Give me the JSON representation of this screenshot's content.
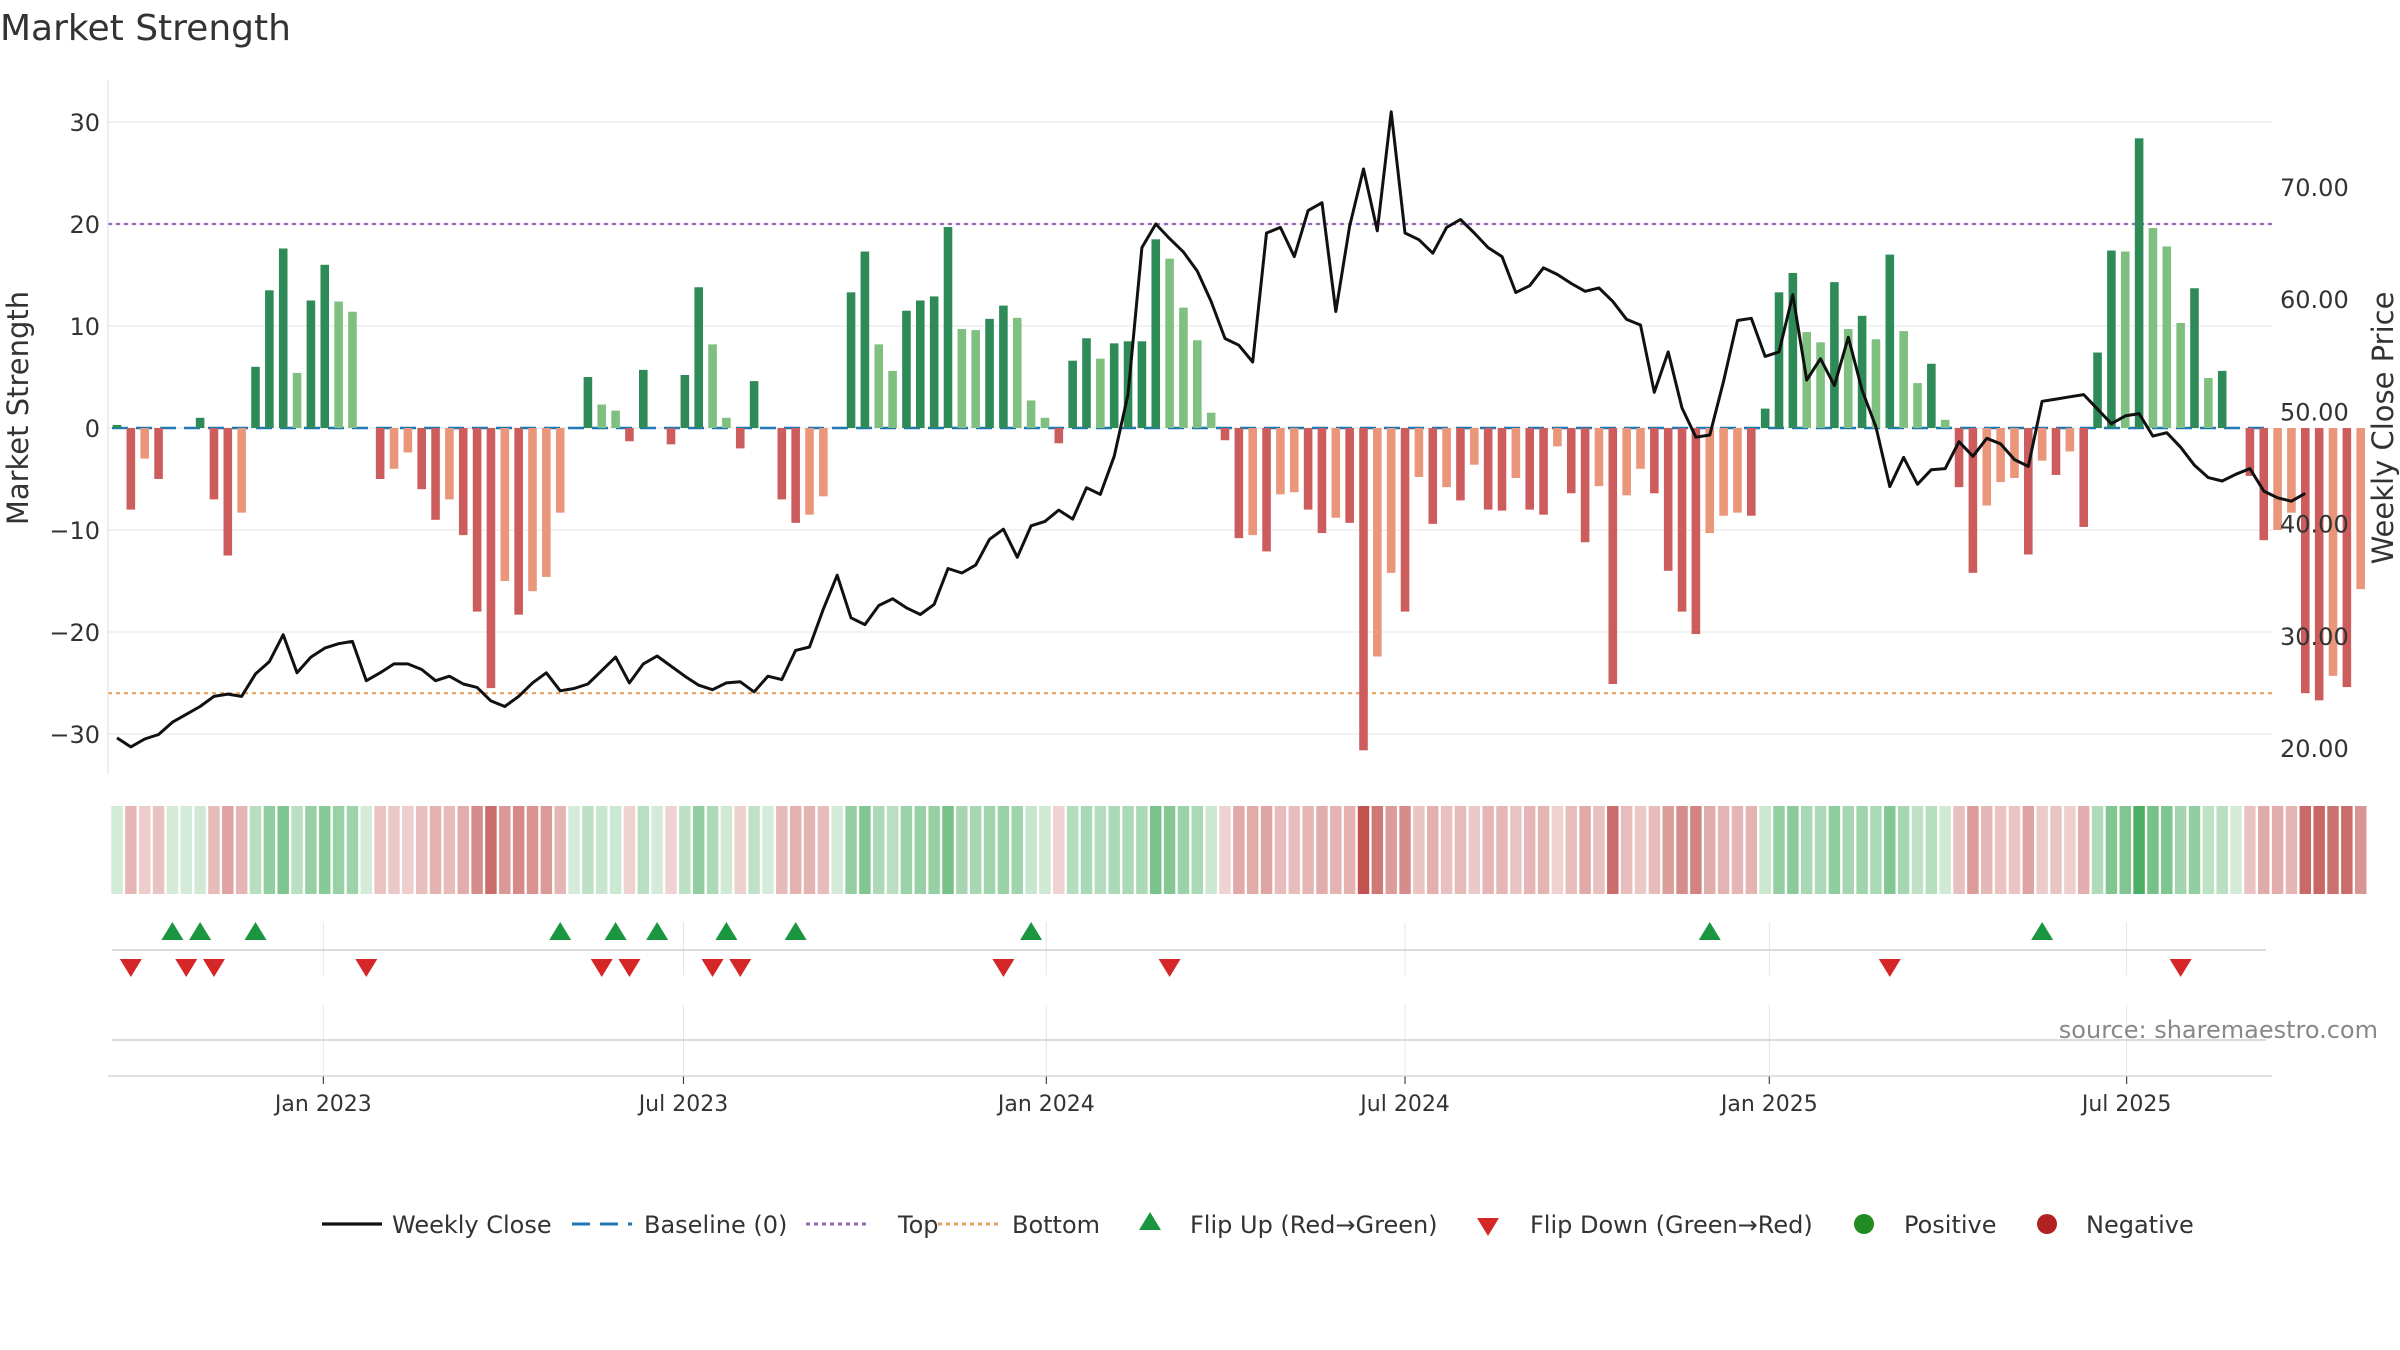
{
  "chart_data": {
    "type": "bar",
    "title": "Market Strength",
    "ylabel": "Market Strength",
    "ylabel_right": "Weekly Close Price",
    "source": "source: sharemaestro.com",
    "ylim": [
      -34,
      35
    ],
    "y_ticks": [
      30,
      20,
      10,
      0,
      -10,
      -20,
      -30
    ],
    "y_tick_labels": [
      "30",
      "20",
      "10",
      "0",
      "−10",
      "−20",
      "−30"
    ],
    "y2lim": [
      16.5,
      81
    ],
    "y2_ticks": [
      70,
      60,
      50,
      40,
      30,
      20
    ],
    "y2_tick_labels": [
      "70.00",
      "60.00",
      "50.00",
      "40.00",
      "30.00",
      "20.00"
    ],
    "x_ticks": [
      {
        "index": 14.9,
        "label": "Jan 2023"
      },
      {
        "index": 40.9,
        "label": "Jul 2023"
      },
      {
        "index": 67.1,
        "label": "Jan 2024"
      },
      {
        "index": 93.0,
        "label": "Jul 2024"
      },
      {
        "index": 119.3,
        "label": "Jan 2025"
      },
      {
        "index": 145.1,
        "label": "Jul 2025"
      }
    ],
    "top_line": 20,
    "bottom_line": -26,
    "colors": {
      "strong_pos": "#2e8b57",
      "weak_pos": "#7fbf7f",
      "strong_neg": "#cd5c5c",
      "weak_neg": "#e9967a",
      "close": "#111111",
      "baseline": "#1f77b4",
      "top": "#9467bd",
      "bottom": "#e9a15f",
      "flip_up": "#1a9641",
      "flip_down": "#d62728",
      "positive": "#228b22",
      "negative": "#b22222"
    },
    "strength": [
      0.3,
      -8,
      -3,
      -5,
      0,
      0,
      1,
      -7,
      -12.5,
      -8.3,
      6,
      13.5,
      17.6,
      5.4,
      12.5,
      16,
      12.4,
      11.4,
      0,
      -5,
      -4,
      -2.4,
      -6,
      -9,
      -7,
      -10.5,
      -18,
      -25.5,
      -15,
      -18.3,
      -16,
      -14.6,
      -8.3,
      0,
      5,
      2.3,
      1.7,
      -1.3,
      5.7,
      0,
      -1.6,
      5.2,
      13.8,
      8.2,
      1,
      -2,
      4.6,
      0,
      -7,
      -9.3,
      -8.5,
      -6.7,
      0,
      13.3,
      17.3,
      8.2,
      5.6,
      11.5,
      12.5,
      12.9,
      19.7,
      9.7,
      9.6,
      10.7,
      12,
      10.8,
      2.7,
      1,
      -1.5,
      6.6,
      8.8,
      6.8,
      8.3,
      8.5,
      8.5,
      18.5,
      16.6,
      11.8,
      8.6,
      1.5,
      -1.2,
      -10.8,
      -10.5,
      -12.1,
      -6.5,
      -6.3,
      -8,
      -10.3,
      -8.8,
      -9.3,
      -31.6,
      -22.4,
      -14.2,
      -18,
      -4.8,
      -9.4,
      -5.8,
      -7.1,
      -3.6,
      -8,
      -8.1,
      -4.9,
      -8,
      -8.5,
      -1.8,
      -6.4,
      -11.2,
      -5.7,
      -25.1,
      -6.6,
      -4,
      -6.4,
      -14,
      -18,
      -20.2,
      -10.3,
      -8.6,
      -8.3,
      -8.6,
      1.9,
      13.3,
      15.2,
      9.4,
      8.4,
      14.3,
      9.7,
      11,
      8.7,
      17,
      9.5,
      4.4,
      6.3,
      0.8,
      -5.8,
      -14.2,
      -7.6,
      -5.3,
      -4.9,
      -12.4,
      -3.2,
      -4.6,
      -2.3,
      -9.7,
      7.4,
      17.4,
      17.3,
      28.4,
      19.6,
      17.8,
      10.3,
      13.7,
      4.9,
      5.6,
      0,
      -4.7,
      -11,
      -10,
      -8.3,
      -26,
      -26.7,
      -24.3,
      -25.4,
      -15.8
    ],
    "weekly_close": [
      20.9,
      20.1,
      20.8,
      21.2,
      22.3,
      23,
      23.7,
      24.6,
      24.8,
      24.6,
      26.6,
      27.7,
      30.1,
      26.7,
      28.1,
      28.9,
      29.3,
      29.5,
      26,
      26.7,
      27.5,
      27.5,
      27,
      26,
      26.4,
      25.7,
      25.4,
      24.2,
      23.7,
      24.6,
      25.8,
      26.7,
      25.1,
      25.3,
      25.7,
      26.9,
      28.1,
      25.8,
      27.5,
      28.2,
      27.3,
      26.4,
      25.6,
      25.2,
      25.8,
      25.9,
      25,
      26.4,
      26.1,
      28.7,
      29,
      32.4,
      35.4,
      31.6,
      31,
      32.7,
      33.3,
      32.5,
      31.9,
      32.8,
      36,
      35.6,
      36.3,
      38.6,
      39.5,
      37,
      39.8,
      40.2,
      41.2,
      40.4,
      43.2,
      42.6,
      46,
      51.5,
      64.6,
      66.7,
      65.4,
      64.2,
      62.5,
      59.8,
      56.5,
      55.9,
      54.4,
      65.9,
      66.4,
      63.8,
      67.9,
      68.6,
      58.9,
      66.5,
      71.6,
      66.1,
      76.7,
      65.9,
      65.3,
      64.1,
      66.4,
      67.1,
      65.9,
      64.6,
      63.8,
      60.6,
      61.2,
      62.8,
      62.2,
      61.4,
      60.7,
      61,
      59.8,
      58.2,
      57.7,
      51.7,
      55.3,
      50.3,
      47.7,
      47.9,
      52.7,
      58.1,
      58.3,
      54.9,
      55.3,
      60.4,
      52.8,
      54.7,
      52.3,
      56.6,
      51.9,
      48.6,
      43.3,
      45.9,
      43.5,
      44.8,
      44.9,
      47.3,
      46,
      47.6,
      47.1,
      45.7,
      45.1,
      50.9,
      51.1,
      51.3,
      51.5,
      50.2,
      48.9,
      49.6,
      49.8,
      47.8,
      48.1,
      46.8,
      45.2,
      44.1,
      43.8,
      44.4,
      44.9,
      42.9,
      42.3,
      42,
      42.7
    ],
    "flip_up_index": [
      4,
      6,
      10,
      32,
      36,
      39,
      44,
      49,
      66,
      115,
      139
    ],
    "flip_down_index": [
      1,
      5,
      7,
      18,
      35,
      37,
      43,
      45,
      64,
      76,
      128,
      149
    ],
    "legend": [
      {
        "key": "close",
        "label": "Weekly Close"
      },
      {
        "key": "baseline",
        "label": "Baseline (0)"
      },
      {
        "key": "top",
        "label": "Top"
      },
      {
        "key": "bottom",
        "label": "Bottom"
      },
      {
        "key": "flip_up",
        "label": "Flip Up (Red→Green)"
      },
      {
        "key": "flip_down",
        "label": "Flip Down (Green→Red)"
      },
      {
        "key": "positive",
        "label": "Positive"
      },
      {
        "key": "negative",
        "label": "Negative"
      }
    ]
  }
}
